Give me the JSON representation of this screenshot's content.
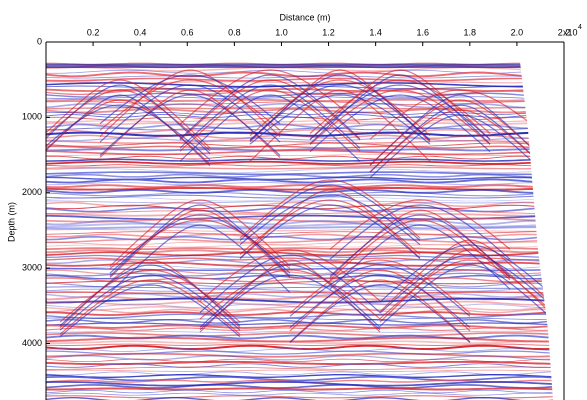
{
  "chart_data": {
    "type": "image",
    "x_label": "Distance (m)",
    "y_label": "Depth (m)",
    "x_scale_label": "x10",
    "x_scale_exponent": "4",
    "xlim": [
      0,
      2.2
    ],
    "xticks": [
      0.2,
      0.4,
      0.6,
      0.8,
      {
        "value": 1,
        "label": "1.0"
      },
      1.2,
      1.4,
      1.6,
      1.8,
      {
        "value": 2,
        "label": "2.0"
      },
      2.2
    ],
    "ylim": [
      0,
      4750
    ],
    "yticks": [
      0,
      1000,
      2000,
      3000,
      4000
    ]
  }
}
